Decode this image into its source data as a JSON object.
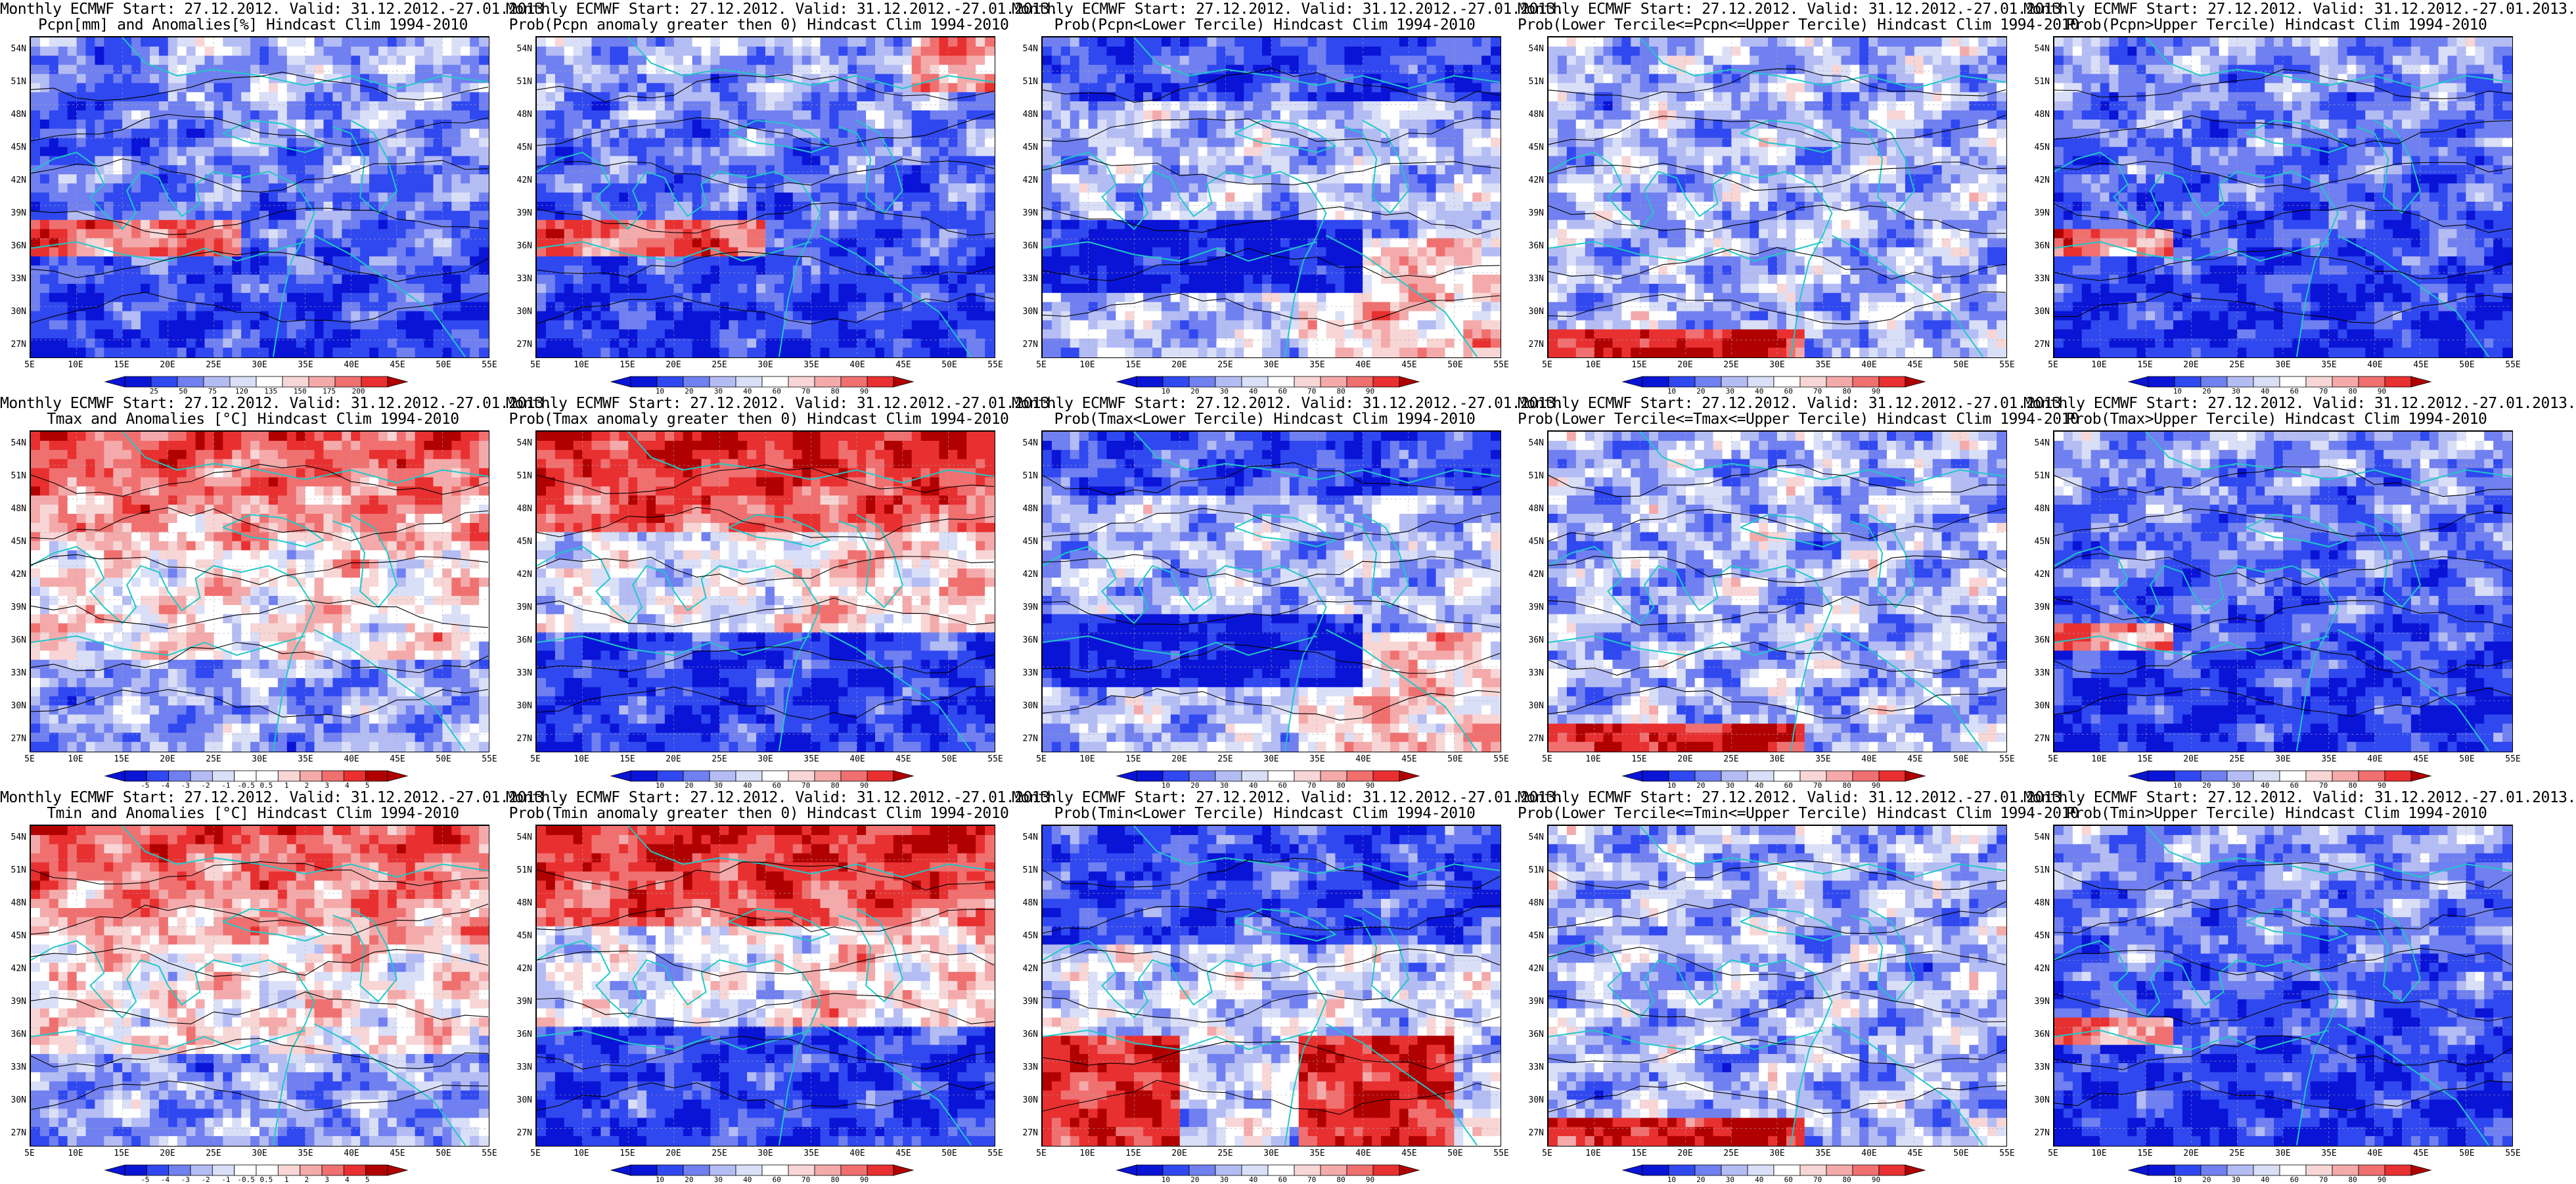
{
  "lat_labels": [
    "54N",
    "51N",
    "48N",
    "45N",
    "42N",
    "39N",
    "36N",
    "33N",
    "30N",
    "27N"
  ],
  "lon_labels": [
    "5E",
    "10E",
    "15E",
    "20E",
    "25E",
    "30E",
    "35E",
    "40E",
    "45E",
    "50E",
    "55E"
  ],
  "colors": {
    "deep_blue": "#0a14d6",
    "blue": "#3048f0",
    "mid_blue": "#7080f0",
    "light_blue": "#b4bcf4",
    "pale_blue": "#dadff8",
    "white": "#ffffff",
    "pale_red": "#f8d6d6",
    "light_red": "#f4aaaa",
    "mid_red": "#f07070",
    "red": "#e83030",
    "deep_red": "#b00000",
    "coast": "#20c8c8",
    "contour": "#000000"
  },
  "panels": [
    {
      "title1": "Monthly ECMWF Start: 27.12.2012. Valid: 31.12.2012.-27.01.2013.",
      "title2": "Pcpn[mm] and Anomalies[%] Hindcast Clim 1994-2010",
      "cbar": [
        "25",
        "50",
        "75",
        "120",
        "135",
        "150",
        "175",
        "200"
      ],
      "scheme": "anom_p"
    },
    {
      "title1": "Monthly ECMWF Start: 27.12.2012. Valid: 31.12.2012.-27.01.2013.",
      "title2": "Prob(Pcpn anomaly greater then 0) Hindcast Clim 1994-2010",
      "cbar": [
        "10",
        "20",
        "30",
        "40",
        "60",
        "70",
        "80",
        "90"
      ],
      "scheme": "prob_a"
    },
    {
      "title1": "Monthly ECMWF Start: 27.12.2012. Valid: 31.12.2012.-27.01.2013.",
      "title2": "Prob(Pcpn<Lower Tercile) Hindcast Clim 1994-2010",
      "cbar": [
        "10",
        "20",
        "30",
        "40",
        "60",
        "70",
        "80",
        "90"
      ],
      "scheme": "prob_b"
    },
    {
      "title1": "Monthly ECMWF Start: 27.12.2012. Valid: 31.12.2012.-27.01.2013.",
      "title2": "Prob(Lower Tercile<=Pcpn<=Upper Tercile) Hindcast Clim 1994-2010",
      "cbar": [
        "10",
        "20",
        "30",
        "40",
        "60",
        "70",
        "80",
        "90"
      ],
      "scheme": "prob_c"
    },
    {
      "title1": "Monthly ECMWF Start: 27.12.2012. Valid: 31.12.2012.-27.01.2013.",
      "title2": "Prob(Pcpn>Upper Tercile) Hindcast Clim 1994-2010",
      "cbar": [
        "10",
        "20",
        "30",
        "40",
        "60",
        "70",
        "80",
        "90"
      ],
      "scheme": "prob_d"
    },
    {
      "title1": "Monthly ECMWF Start: 27.12.2012. Valid: 31.12.2012.-27.01.2013.",
      "title2": "Tmax and Anomalies [°C] Hindcast Clim 1994-2010",
      "cbar": [
        "-5",
        "-4",
        "-3",
        "-2",
        "-1",
        "-0.5",
        "0.5",
        "1",
        "2",
        "3",
        "4",
        "5"
      ],
      "scheme": "anom_t"
    },
    {
      "title1": "Monthly ECMWF Start: 27.12.2012. Valid: 31.12.2012.-27.01.2013.",
      "title2": "Prob(Tmax anomaly greater then 0) Hindcast Clim 1994-2010",
      "cbar": [
        "10",
        "20",
        "30",
        "40",
        "60",
        "70",
        "80",
        "90"
      ],
      "scheme": "prob_w"
    },
    {
      "title1": "Monthly ECMWF Start: 27.12.2012. Valid: 31.12.2012.-27.01.2013.",
      "title2": "Prob(Tmax<Lower Tercile) Hindcast Clim 1994-2010",
      "cbar": [
        "10",
        "20",
        "30",
        "40",
        "60",
        "70",
        "80",
        "90"
      ],
      "scheme": "prob_b"
    },
    {
      "title1": "Monthly ECMWF Start: 27.12.2012. Valid: 31.12.2012.-27.01.2013.",
      "title2": "Prob(Lower Tercile<=Tmax<=Upper Tercile) Hindcast Clim 1994-2010",
      "cbar": [
        "10",
        "20",
        "30",
        "40",
        "60",
        "70",
        "80",
        "90"
      ],
      "scheme": "prob_c"
    },
    {
      "title1": "Monthly ECMWF Start: 27.12.2012. Valid: 31.12.2012.-27.01.2013.",
      "title2": "Prob(Tmax>Upper Tercile) Hindcast Clim 1994-2010",
      "cbar": [
        "10",
        "20",
        "30",
        "40",
        "60",
        "70",
        "80",
        "90"
      ],
      "scheme": "prob_d"
    },
    {
      "title1": "Monthly ECMWF Start: 27.12.2012. Valid: 31.12.2012.-27.01.2013.",
      "title2": "Tmin and Anomalies [°C] Hindcast Clim 1994-2010",
      "cbar": [
        "-5",
        "-4",
        "-3",
        "-2",
        "-1",
        "-0.5",
        "0.5",
        "1",
        "2",
        "3",
        "4",
        "5"
      ],
      "scheme": "anom_t"
    },
    {
      "title1": "Monthly ECMWF Start: 27.12.2012. Valid: 31.12.2012.-27.01.2013.",
      "title2": "Prob(Tmin anomaly greater then 0) Hindcast Clim 1994-2010",
      "cbar": [
        "10",
        "20",
        "30",
        "40",
        "60",
        "70",
        "80",
        "90"
      ],
      "scheme": "prob_w"
    },
    {
      "title1": "Monthly ECMWF Start: 27.12.2012. Valid: 31.12.2012.-27.01.2013.",
      "title2": "Prob(Tmin<Lower Tercile) Hindcast Clim 1994-2010",
      "cbar": [
        "10",
        "20",
        "30",
        "40",
        "60",
        "70",
        "80",
        "90"
      ],
      "scheme": "prob_b2"
    },
    {
      "title1": "Monthly ECMWF Start: 27.12.2012. Valid: 31.12.2012.-27.01.2013.",
      "title2": "Prob(Lower Tercile<=Tmin<=Upper Tercile) Hindcast Clim 1994-2010",
      "cbar": [
        "10",
        "20",
        "30",
        "40",
        "60",
        "70",
        "80",
        "90"
      ],
      "scheme": "prob_c"
    },
    {
      "title1": "Monthly ECMWF Start: 27.12.2012. Valid: 31.12.2012.-27.01.2013.",
      "title2": "Prob(Tmin>Upper Tercile) Hindcast Clim 1994-2010",
      "cbar": [
        "10",
        "20",
        "30",
        "40",
        "60",
        "70",
        "80",
        "90"
      ],
      "scheme": "prob_d"
    }
  ]
}
